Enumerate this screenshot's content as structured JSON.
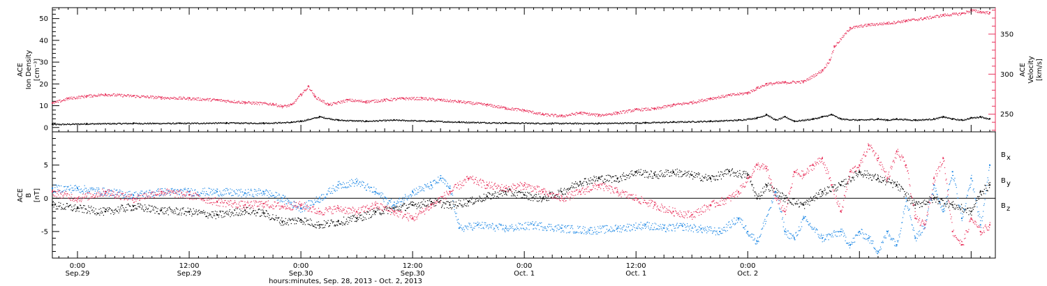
{
  "colors": {
    "black": "#000000",
    "pink": "#e8305a",
    "blue": "#1e88e5"
  },
  "bottom_label": "hours:minutes, Sep. 28, 2013 - Oct. 2, 2013",
  "chart_data": [
    {
      "type": "scatter",
      "panel": "top",
      "ylabel_left": [
        "ACE",
        "Ion Density",
        "[cm⁻³]"
      ],
      "ylabel_right": [
        "ACE",
        "Velocity",
        "[km/s]"
      ],
      "x_unit": "hours since Sep. 28, 2013 00:00",
      "xlim": [
        21.3,
        122.6
      ],
      "ylim_left": [
        -2,
        55
      ],
      "ylim_right": [
        228,
        383
      ],
      "yticks_left": [
        0,
        10,
        20,
        30,
        40,
        50
      ],
      "yticks_right": [
        250,
        300,
        350
      ],
      "series": [
        {
          "axis": "left",
          "color": "#000000",
          "points": [
            [
              21.3,
              1.5
            ],
            [
              25,
              1.8
            ],
            [
              30,
              2
            ],
            [
              35,
              2
            ],
            [
              40,
              2.2
            ],
            [
              44,
              2.1
            ],
            [
              47,
              2.5
            ],
            [
              48,
              3
            ],
            [
              50,
              5
            ],
            [
              52,
              3.5
            ],
            [
              55,
              3
            ],
            [
              58,
              3.5
            ],
            [
              62,
              3
            ],
            [
              65,
              2.6
            ],
            [
              70,
              2.2
            ],
            [
              75,
              2
            ],
            [
              80,
              2
            ],
            [
              85,
              2.3
            ],
            [
              88,
              2.6
            ],
            [
              92,
              3
            ],
            [
              95,
              3.5
            ],
            [
              97,
              4.5
            ],
            [
              98,
              6
            ],
            [
              99,
              3.5
            ],
            [
              100,
              5
            ],
            [
              101,
              3
            ],
            [
              103,
              4
            ],
            [
              104,
              5
            ],
            [
              105,
              6
            ],
            [
              106,
              4
            ],
            [
              108,
              3.5
            ],
            [
              110,
              4
            ],
            [
              111,
              3.5
            ],
            [
              112,
              4
            ],
            [
              114,
              3.5
            ],
            [
              116,
              4
            ],
            [
              117,
              5
            ],
            [
              118,
              4
            ],
            [
              119,
              3.5
            ],
            [
              120,
              4.5
            ],
            [
              121,
              5
            ],
            [
              122,
              4
            ]
          ]
        },
        {
          "axis": "right",
          "color": "#e8305a",
          "points": [
            [
              21.3,
              264
            ],
            [
              23,
              270
            ],
            [
              25,
              273
            ],
            [
              27,
              275
            ],
            [
              30,
              273
            ],
            [
              33,
              271
            ],
            [
              36,
              270
            ],
            [
              39,
              268
            ],
            [
              42,
              265
            ],
            [
              45,
              263
            ],
            [
              46,
              260
            ],
            [
              47,
              262
            ],
            [
              48,
              275
            ],
            [
              48.8,
              285
            ],
            [
              49.5,
              272
            ],
            [
              51,
              262
            ],
            [
              53,
              268
            ],
            [
              55,
              266
            ],
            [
              57,
              268
            ],
            [
              59,
              270
            ],
            [
              61,
              270
            ],
            [
              63,
              268
            ],
            [
              65,
              266
            ],
            [
              68,
              262
            ],
            [
              70,
              258
            ],
            [
              72,
              255
            ],
            [
              74,
              250
            ],
            [
              76,
              248
            ],
            [
              78,
              252
            ],
            [
              80,
              249
            ],
            [
              82,
              252
            ],
            [
              84,
              256
            ],
            [
              86,
              257
            ],
            [
              88,
              262
            ],
            [
              90,
              265
            ],
            [
              92,
              270
            ],
            [
              94,
              274
            ],
            [
              96,
              277
            ],
            [
              97,
              283
            ],
            [
              98,
              288
            ],
            [
              100,
              290
            ],
            [
              102,
              291
            ],
            [
              104,
              305
            ],
            [
              104.8,
              318
            ],
            [
              105.3,
              335
            ],
            [
              107,
              358
            ],
            [
              109,
              362
            ],
            [
              111,
              364
            ],
            [
              113,
              367
            ],
            [
              115,
              370
            ],
            [
              117,
              374
            ],
            [
              119,
              376
            ],
            [
              120,
              380
            ],
            [
              121,
              378
            ],
            [
              122,
              377
            ]
          ]
        }
      ]
    },
    {
      "type": "scatter",
      "panel": "bottom",
      "ylabel_left": [
        "ACE",
        "B",
        "[nT]"
      ],
      "x_unit": "hours since Sep. 28, 2013 00:00",
      "xlim": [
        21.3,
        122.6
      ],
      "ylim": [
        -9,
        10
      ],
      "yticks": [
        5,
        0,
        -5
      ],
      "zero_line": true,
      "xtick_labels": [
        "0:00",
        "12:00",
        "0:00",
        "12:00",
        "0:00",
        "12:00",
        "0:00"
      ],
      "xtick_sublabels": [
        "Sep.29",
        "Sep.29",
        "Sep.30",
        "Sep.30",
        "Oct. 1",
        "Oct. 1",
        "Oct. 2"
      ],
      "xtick_values": [
        24,
        36,
        48,
        60,
        72,
        84,
        96
      ],
      "legend": [
        {
          "name": "Bx",
          "main": "B",
          "sub": "x",
          "color": "#000000"
        },
        {
          "name": "By",
          "main": "B",
          "sub": "y",
          "color": "#1e88e5"
        },
        {
          "name": "Bz",
          "main": "B",
          "sub": "z",
          "color": "#e8305a"
        }
      ],
      "series": [
        {
          "name": "Bx",
          "color": "#000000",
          "points": [
            [
              21.3,
              -1
            ],
            [
              24,
              -1.5
            ],
            [
              27,
              -2
            ],
            [
              30,
              -1.2
            ],
            [
              33,
              -1.8
            ],
            [
              36,
              -2
            ],
            [
              39,
              -2.5
            ],
            [
              42,
              -1.8
            ],
            [
              44,
              -2.2
            ],
            [
              46,
              -3.5
            ],
            [
              48,
              -3.2
            ],
            [
              50,
              -4
            ],
            [
              52,
              -3.5
            ],
            [
              54,
              -3
            ],
            [
              56,
              -2
            ],
            [
              58,
              -1.5
            ],
            [
              60,
              -1
            ],
            [
              62,
              -0.5
            ],
            [
              64,
              -1
            ],
            [
              66,
              -0.5
            ],
            [
              68,
              0.3
            ],
            [
              70,
              1
            ],
            [
              72,
              0.5
            ],
            [
              74,
              0
            ],
            [
              76,
              1
            ],
            [
              78,
              2.5
            ],
            [
              80,
              3
            ],
            [
              82,
              3
            ],
            [
              84,
              4
            ],
            [
              86,
              3.5
            ],
            [
              88,
              4
            ],
            [
              90,
              3.5
            ],
            [
              92,
              3
            ],
            [
              94,
              4
            ],
            [
              96,
              3.5
            ],
            [
              97,
              0
            ],
            [
              98,
              2
            ],
            [
              100,
              0
            ],
            [
              102,
              -1
            ],
            [
              104,
              1
            ],
            [
              106,
              2
            ],
            [
              108,
              4
            ],
            [
              110,
              3
            ],
            [
              112,
              2
            ],
            [
              114,
              -1
            ],
            [
              116,
              0
            ],
            [
              118,
              -1
            ],
            [
              120,
              -2
            ],
            [
              121,
              1
            ],
            [
              122,
              2
            ]
          ]
        },
        {
          "name": "By",
          "color": "#1e88e5",
          "points": [
            [
              21.3,
              1.5
            ],
            [
              24,
              1.5
            ],
            [
              27,
              1
            ],
            [
              30,
              0.5
            ],
            [
              33,
              1
            ],
            [
              36,
              1
            ],
            [
              39,
              1
            ],
            [
              42,
              0.8
            ],
            [
              44,
              1
            ],
            [
              46,
              0
            ],
            [
              48,
              -1.5
            ],
            [
              50,
              0
            ],
            [
              52,
              2
            ],
            [
              54,
              2.5
            ],
            [
              56,
              1
            ],
            [
              58,
              -1
            ],
            [
              60,
              1
            ],
            [
              62,
              2
            ],
            [
              63,
              3
            ],
            [
              64,
              1.5
            ],
            [
              65,
              -4.5
            ],
            [
              67,
              -4
            ],
            [
              70,
              -4.5
            ],
            [
              73,
              -4
            ],
            [
              76,
              -4.5
            ],
            [
              79,
              -4.8
            ],
            [
              82,
              -4.5
            ],
            [
              85,
              -4
            ],
            [
              87,
              -4.5
            ],
            [
              89,
              -4.2
            ],
            [
              91,
              -4.6
            ],
            [
              93,
              -5
            ],
            [
              95,
              -3
            ],
            [
              96,
              -5
            ],
            [
              97,
              -6.5
            ],
            [
              99,
              1
            ],
            [
              100,
              -5
            ],
            [
              101,
              -6
            ],
            [
              102,
              -3
            ],
            [
              104,
              -6
            ],
            [
              106,
              -5
            ],
            [
              107,
              -7
            ],
            [
              108,
              -5
            ],
            [
              109,
              -6
            ],
            [
              110,
              -8
            ],
            [
              111,
              -5
            ],
            [
              112,
              -7
            ],
            [
              113,
              0
            ],
            [
              114,
              -6
            ],
            [
              115,
              -4
            ],
            [
              116,
              2
            ],
            [
              117,
              -2
            ],
            [
              118,
              4
            ],
            [
              119,
              -3
            ],
            [
              120,
              3
            ],
            [
              121,
              -4
            ],
            [
              122,
              5
            ]
          ]
        },
        {
          "name": "Bz",
          "color": "#e8305a",
          "points": [
            [
              21.3,
              1
            ],
            [
              24,
              0
            ],
            [
              27,
              1
            ],
            [
              30,
              0
            ],
            [
              33,
              1
            ],
            [
              36,
              0.5
            ],
            [
              39,
              -0.5
            ],
            [
              42,
              -1
            ],
            [
              44,
              -0.8
            ],
            [
              46,
              -1.2
            ],
            [
              48,
              -1
            ],
            [
              50,
              -2
            ],
            [
              52,
              -1.5
            ],
            [
              54,
              -2
            ],
            [
              56,
              -1
            ],
            [
              58,
              -2
            ],
            [
              60,
              -3
            ],
            [
              62,
              -1
            ],
            [
              64,
              1
            ],
            [
              66,
              3
            ],
            [
              68,
              2
            ],
            [
              70,
              1.5
            ],
            [
              72,
              2
            ],
            [
              74,
              1
            ],
            [
              76,
              0
            ],
            [
              78,
              1
            ],
            [
              80,
              2
            ],
            [
              82,
              1
            ],
            [
              84,
              0
            ],
            [
              86,
              -1
            ],
            [
              88,
              -2
            ],
            [
              90,
              -2.5
            ],
            [
              92,
              -1
            ],
            [
              94,
              0
            ],
            [
              95,
              1
            ],
            [
              96,
              3
            ],
            [
              97,
              5
            ],
            [
              98,
              4.5
            ],
            [
              99,
              0
            ],
            [
              100,
              -2
            ],
            [
              101,
              4
            ],
            [
              102,
              3.5
            ],
            [
              103,
              5
            ],
            [
              104,
              6
            ],
            [
              105,
              2
            ],
            [
              106,
              -2
            ],
            [
              107,
              4
            ],
            [
              108,
              5
            ],
            [
              109,
              8
            ],
            [
              110,
              6
            ],
            [
              111,
              3
            ],
            [
              112,
              7
            ],
            [
              113,
              5
            ],
            [
              114,
              -3
            ],
            [
              115,
              -4
            ],
            [
              116,
              3
            ],
            [
              117,
              6
            ],
            [
              118,
              -5
            ],
            [
              119,
              -7
            ],
            [
              120,
              -3
            ],
            [
              121,
              -5
            ],
            [
              122,
              -4
            ]
          ]
        }
      ]
    }
  ]
}
